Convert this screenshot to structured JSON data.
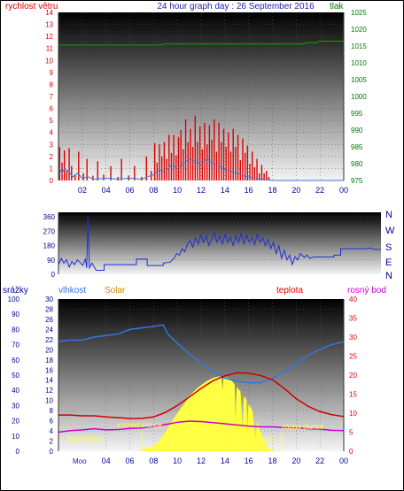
{
  "title": "24 hour graph day : 26 September 2016",
  "colors": {
    "red": "#dd0000",
    "green": "#007700",
    "blue": "#2222aa",
    "navy": "#000099",
    "orange": "#cc8800",
    "magenta": "#cc00cc",
    "sun": "#ffff44",
    "humidity": "#3377dd",
    "wind_dir": "#1f2fd6",
    "annot": "#ffff55"
  },
  "chart_data": [
    {
      "type": "bar",
      "name": "wind",
      "left_label": "rychlost větru",
      "right_label": "tlak",
      "left_ticks": [
        "0",
        "1",
        "2",
        "3",
        "4",
        "5",
        "6",
        "7",
        "8",
        "9",
        "10",
        "11",
        "12",
        "13",
        "14"
      ],
      "right_ticks": [
        "975",
        "980",
        "985",
        "990",
        "995",
        "1000",
        "1005",
        "1010",
        "1015",
        "1020",
        "1025"
      ],
      "x_ticks": [
        "02",
        "04",
        "06",
        "08",
        "10",
        "12",
        "14",
        "16",
        "18",
        "20",
        "22",
        "00"
      ],
      "ylim": [
        0,
        14
      ],
      "y2lim": [
        975,
        1025
      ],
      "xlim": [
        0,
        24
      ],
      "wind_gust": [
        [
          0.1,
          2.8
        ],
        [
          0.3,
          1.5
        ],
        [
          0.5,
          2.5
        ],
        [
          0.7,
          0.8
        ],
        [
          0.9,
          2.7
        ],
        [
          1.1,
          1.2
        ],
        [
          1.4,
          0.5
        ],
        [
          1.7,
          2.4
        ],
        [
          2.1,
          0.6
        ],
        [
          2.4,
          1.8
        ],
        [
          2.9,
          0.4
        ],
        [
          3.3,
          1.6
        ],
        [
          3.8,
          0.5
        ],
        [
          4.4,
          1.2
        ],
        [
          5.0,
          0.3
        ],
        [
          5.3,
          1.8
        ],
        [
          5.9,
          0.4
        ],
        [
          6.4,
          1.2
        ],
        [
          7.0,
          0.3
        ],
        [
          7.4,
          2.0
        ],
        [
          7.8,
          0.8
        ],
        [
          8.1,
          3.1
        ],
        [
          8.3,
          1.5
        ],
        [
          8.5,
          3.0
        ],
        [
          8.7,
          2.0
        ],
        [
          8.9,
          3.2
        ],
        [
          9.1,
          1.8
        ],
        [
          9.3,
          3.8
        ],
        [
          9.5,
          2.3
        ],
        [
          9.7,
          3.8
        ],
        [
          9.9,
          2.1
        ],
        [
          10.1,
          3.6
        ],
        [
          10.3,
          4.2
        ],
        [
          10.5,
          2.6
        ],
        [
          10.7,
          5.1
        ],
        [
          10.9,
          3.2
        ],
        [
          11.1,
          4.3
        ],
        [
          11.3,
          2.8
        ],
        [
          11.5,
          5.4
        ],
        [
          11.7,
          3.2
        ],
        [
          11.9,
          4.5
        ],
        [
          12.1,
          2.6
        ],
        [
          12.3,
          4.8
        ],
        [
          12.5,
          3.0
        ],
        [
          12.7,
          4.6
        ],
        [
          12.9,
          3.4
        ],
        [
          13.1,
          5.1
        ],
        [
          13.3,
          2.4
        ],
        [
          13.5,
          4.8
        ],
        [
          13.7,
          3.2
        ],
        [
          13.9,
          4.3
        ],
        [
          14.1,
          2.8
        ],
        [
          14.3,
          4.0
        ],
        [
          14.5,
          2.4
        ],
        [
          14.7,
          4.3
        ],
        [
          14.9,
          2.8
        ],
        [
          15.1,
          3.8
        ],
        [
          15.3,
          1.7
        ],
        [
          15.5,
          3.5
        ],
        [
          15.7,
          2.3
        ],
        [
          15.9,
          2.9
        ],
        [
          16.1,
          1.4
        ],
        [
          16.3,
          2.4
        ],
        [
          16.5,
          1.1
        ],
        [
          16.7,
          1.8
        ],
        [
          16.9,
          0.6
        ],
        [
          17.1,
          1.3
        ],
        [
          17.3,
          0.6
        ],
        [
          17.5,
          0.8
        ],
        [
          17.7,
          0.3
        ]
      ],
      "wind_avg": [
        [
          0,
          1.2
        ],
        [
          0.3,
          0.6
        ],
        [
          0.5,
          1.0
        ],
        [
          0.9,
          0.7
        ],
        [
          1.2,
          0.3
        ],
        [
          1.6,
          0.6
        ],
        [
          2.0,
          0.2
        ],
        [
          2.5,
          0.3
        ],
        [
          3.0,
          0.1
        ],
        [
          4.0,
          0.2
        ],
        [
          5.0,
          0.1
        ],
        [
          6.0,
          0.2
        ],
        [
          7.0,
          0.1
        ],
        [
          7.5,
          0.3
        ],
        [
          8.0,
          0.5
        ],
        [
          8.5,
          0.9
        ],
        [
          9.0,
          0.7
        ],
        [
          9.5,
          1.3
        ],
        [
          10.0,
          1.0
        ],
        [
          10.5,
          1.4
        ],
        [
          11.0,
          1.8
        ],
        [
          11.5,
          1.6
        ],
        [
          12.0,
          1.3
        ],
        [
          12.5,
          1.8
        ],
        [
          13.0,
          1.4
        ],
        [
          13.5,
          1.2
        ],
        [
          14.0,
          0.9
        ],
        [
          14.5,
          0.8
        ],
        [
          15.0,
          0.6
        ],
        [
          15.5,
          0.4
        ],
        [
          16.0,
          0.3
        ],
        [
          17.0,
          0.1
        ],
        [
          18.0,
          0.0
        ],
        [
          24.0,
          0.0
        ]
      ],
      "pressure": [
        [
          0,
          1015.3
        ],
        [
          8.7,
          1015.3
        ],
        [
          8.8,
          1015.6
        ],
        [
          20.7,
          1015.6
        ],
        [
          20.8,
          1016.0
        ],
        [
          21.8,
          1016.0
        ],
        [
          21.9,
          1016.4
        ],
        [
          24,
          1016.4
        ]
      ]
    },
    {
      "type": "line",
      "name": "wind_direction",
      "left_ticks": [
        "0",
        "90",
        "180",
        "270",
        "360"
      ],
      "right_ticks": [
        "N",
        "W",
        "S",
        "E",
        "N"
      ],
      "ylim": [
        0,
        360
      ],
      "direction": [
        [
          0,
          60
        ],
        [
          0.2,
          100
        ],
        [
          0.4,
          70
        ],
        [
          0.6,
          90
        ],
        [
          0.8,
          45
        ],
        [
          1.0,
          80
        ],
        [
          1.2,
          60
        ],
        [
          1.4,
          90
        ],
        [
          1.6,
          75
        ],
        [
          1.8,
          55
        ],
        [
          2.0,
          95
        ],
        [
          2.1,
          40
        ],
        [
          2.2,
          360
        ],
        [
          2.3,
          40
        ],
        [
          2.5,
          70
        ],
        [
          2.8,
          25
        ],
        [
          3.4,
          25
        ],
        [
          3.4,
          60
        ],
        [
          5.8,
          60
        ],
        [
          5.8,
          95
        ],
        [
          6.6,
          95
        ],
        [
          6.6,
          55
        ],
        [
          7.8,
          55
        ],
        [
          7.8,
          70
        ],
        [
          8.3,
          75
        ],
        [
          8.6,
          100
        ],
        [
          8.8,
          130
        ],
        [
          9.0,
          120
        ],
        [
          9.2,
          160
        ],
        [
          9.4,
          140
        ],
        [
          9.6,
          190
        ],
        [
          9.8,
          210
        ],
        [
          10.0,
          170
        ],
        [
          10.2,
          230
        ],
        [
          10.4,
          190
        ],
        [
          10.6,
          250
        ],
        [
          10.8,
          200
        ],
        [
          11.0,
          240
        ],
        [
          11.2,
          180
        ],
        [
          11.4,
          220
        ],
        [
          11.6,
          260
        ],
        [
          11.8,
          200
        ],
        [
          12.0,
          240
        ],
        [
          12.2,
          190
        ],
        [
          12.4,
          250
        ],
        [
          12.6,
          200
        ],
        [
          12.8,
          235
        ],
        [
          13.0,
          180
        ],
        [
          13.2,
          240
        ],
        [
          13.4,
          200
        ],
        [
          13.6,
          255
        ],
        [
          13.8,
          190
        ],
        [
          14.0,
          245
        ],
        [
          14.2,
          200
        ],
        [
          14.4,
          230
        ],
        [
          14.6,
          185
        ],
        [
          14.8,
          250
        ],
        [
          15.0,
          200
        ],
        [
          15.2,
          230
        ],
        [
          15.4,
          180
        ],
        [
          15.6,
          220
        ],
        [
          15.8,
          160
        ],
        [
          16.0,
          200
        ],
        [
          16.2,
          130
        ],
        [
          16.4,
          180
        ],
        [
          16.6,
          100
        ],
        [
          16.8,
          150
        ],
        [
          17.0,
          90
        ],
        [
          17.2,
          120
        ],
        [
          17.4,
          60
        ],
        [
          17.6,
          110
        ],
        [
          17.8,
          90
        ],
        [
          18.0,
          130
        ],
        [
          18.3,
          105
        ],
        [
          18.5,
          120
        ],
        [
          18.7,
          100
        ],
        [
          19.0,
          108
        ],
        [
          20.5,
          108
        ],
        [
          20.5,
          120
        ],
        [
          21.0,
          120
        ],
        [
          21.0,
          160
        ],
        [
          23.0,
          160
        ],
        [
          23.2,
          165
        ],
        [
          23.5,
          155
        ],
        [
          24,
          155
        ]
      ]
    },
    {
      "type": "area",
      "name": "climate",
      "labels": {
        "rain": "srážky",
        "humidity": "vlhkost",
        "solar": "Solar",
        "temperature": "teplota",
        "dew": "rosný bod"
      },
      "left_ticks_rain": [
        "0",
        "10",
        "20",
        "30",
        "40",
        "50",
        "60",
        "70",
        "80",
        "90",
        "100"
      ],
      "left_ticks_solar": [
        "0",
        "2",
        "4",
        "6",
        "8",
        "10",
        "12",
        "14",
        "16",
        "18",
        "20",
        "22",
        "24",
        "26",
        "28",
        "30"
      ],
      "right_ticks_temp": [
        "0",
        "5",
        "10",
        "15",
        "20",
        "25",
        "30",
        "35",
        "40"
      ],
      "x_ticks": [
        "04",
        "06",
        "08",
        "10",
        "12",
        "14",
        "16",
        "18",
        "20",
        "22",
        "00"
      ],
      "annotations": {
        "sunrise": "východ slunce",
        "sunset": "západ slunce",
        "moonrise": "Moon Rise",
        "moonset": "Moon Set",
        "moon_tick": "Moo"
      },
      "humidity": [
        [
          0,
          72
        ],
        [
          1,
          73
        ],
        [
          2,
          73
        ],
        [
          3,
          75
        ],
        [
          4,
          76
        ],
        [
          5,
          77
        ],
        [
          6,
          80
        ],
        [
          7,
          81
        ],
        [
          8,
          82
        ],
        [
          8.8,
          83
        ],
        [
          9.2,
          77
        ],
        [
          10,
          71
        ],
        [
          11,
          64
        ],
        [
          12,
          58
        ],
        [
          13,
          52
        ],
        [
          14,
          48
        ],
        [
          15,
          46
        ],
        [
          16,
          45
        ],
        [
          17,
          45
        ],
        [
          18,
          48
        ],
        [
          19,
          52
        ],
        [
          20,
          58
        ],
        [
          21,
          63
        ],
        [
          22,
          67
        ],
        [
          23,
          70
        ],
        [
          24,
          72
        ]
      ],
      "temperature": [
        [
          0,
          9.5
        ],
        [
          1,
          9.5
        ],
        [
          2,
          9.3
        ],
        [
          3,
          9.3
        ],
        [
          4,
          9.0
        ],
        [
          5,
          8.8
        ],
        [
          6,
          8.6
        ],
        [
          7,
          8.6
        ],
        [
          8,
          9.0
        ],
        [
          9,
          10.2
        ],
        [
          10,
          12.0
        ],
        [
          11,
          14.2
        ],
        [
          12,
          16.5
        ],
        [
          13,
          18.5
        ],
        [
          14,
          19.8
        ],
        [
          15,
          20.6
        ],
        [
          16,
          20.5
        ],
        [
          17,
          19.9
        ],
        [
          18,
          18.8
        ],
        [
          19,
          16.5
        ],
        [
          20,
          13.8
        ],
        [
          21,
          11.8
        ],
        [
          22,
          10.4
        ],
        [
          23,
          9.6
        ],
        [
          24,
          9.1
        ]
      ],
      "dew_point": [
        [
          0,
          5.0
        ],
        [
          1,
          5.4
        ],
        [
          2,
          5.6
        ],
        [
          3,
          5.9
        ],
        [
          4,
          5.6
        ],
        [
          5,
          5.7
        ],
        [
          6,
          6.0
        ],
        [
          7,
          6.1
        ],
        [
          8,
          6.5
        ],
        [
          9,
          7.0
        ],
        [
          10,
          7.6
        ],
        [
          11,
          7.9
        ],
        [
          12,
          7.8
        ],
        [
          13,
          7.5
        ],
        [
          14,
          7.2
        ],
        [
          15,
          6.9
        ],
        [
          16,
          6.6
        ],
        [
          17,
          6.4
        ],
        [
          18,
          6.4
        ],
        [
          19,
          6.2
        ],
        [
          20,
          6.1
        ],
        [
          21,
          5.9
        ],
        [
          22,
          5.8
        ],
        [
          23,
          5.5
        ],
        [
          24,
          5.4
        ]
      ],
      "solar": [
        [
          6.8,
          0
        ],
        [
          7.2,
          0.3
        ],
        [
          8,
          1.0
        ],
        [
          8.5,
          2.0
        ],
        [
          9.0,
          3.8
        ],
        [
          9.5,
          5.6
        ],
        [
          10,
          7.5
        ],
        [
          10.5,
          9.0
        ],
        [
          11,
          10.8
        ],
        [
          11.5,
          12.0
        ],
        [
          12,
          13.0
        ],
        [
          12.5,
          13.8
        ],
        [
          13,
          14.4
        ],
        [
          13.5,
          14.7
        ],
        [
          13.7,
          14.8
        ],
        [
          13.8,
          11.5
        ],
        [
          13.9,
          14.6
        ],
        [
          14.3,
          14.4
        ],
        [
          14.6,
          13.8
        ],
        [
          14.8,
          13.2
        ],
        [
          14.9,
          4.5
        ],
        [
          15.0,
          12.6
        ],
        [
          15.3,
          11.8
        ],
        [
          15.5,
          3.5
        ],
        [
          15.6,
          10.8
        ],
        [
          15.8,
          10.2
        ],
        [
          15.9,
          2.5
        ],
        [
          16.0,
          9.2
        ],
        [
          16.3,
          8.0
        ],
        [
          16.6,
          1.5
        ],
        [
          16.7,
          5.8
        ],
        [
          17.0,
          3.8
        ],
        [
          17.3,
          1.8
        ],
        [
          17.6,
          0.6
        ],
        [
          18.0,
          0.1
        ],
        [
          18.3,
          0
        ]
      ]
    }
  ]
}
